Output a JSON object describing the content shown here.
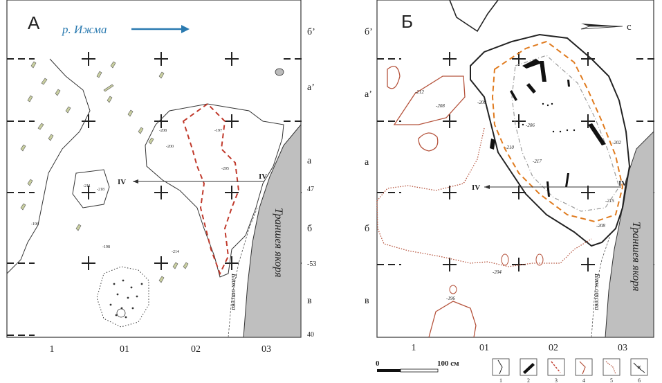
{
  "panel_a": {
    "letter": "А",
    "river_label": "р. Ижма",
    "row_labels": [
      "б’",
      "а’",
      "а",
      "47",
      "б",
      "-53",
      "в",
      "40"
    ],
    "col_labels": [
      "1",
      "01",
      "02",
      "03"
    ],
    "section_label_left": "IV",
    "section_label_right": "IV",
    "trench_label": "Траншея якоря",
    "dump_label": "Блок отсева",
    "depth_labels": [
      "-208",
      "-200",
      "-218",
      "-211",
      "-205",
      "-198",
      "-214",
      "-196",
      "-197"
    ]
  },
  "panel_b": {
    "letter": "Б",
    "north_label": "с",
    "row_labels": [
      "б’",
      "а’",
      "а",
      "б",
      "в"
    ],
    "col_labels": [
      "1",
      "01",
      "02",
      "03"
    ],
    "section_label_left": "IV",
    "section_label_right": "IV",
    "trench_label": "Траншея якоря",
    "dump_label": "Блок отсева",
    "depth_labels": [
      "-212",
      "-208",
      "-200",
      "-206",
      "-202",
      "-210",
      "-217",
      "-215",
      "-208",
      "-204",
      "-196"
    ]
  },
  "scale": {
    "start": "0",
    "end": "100 см"
  },
  "legend": [
    "1",
    "2",
    "3",
    "4",
    "5",
    "6"
  ],
  "colors": {
    "river_arrow": "#2a7ab0",
    "red_dashed": "#c0392b",
    "orange_dashed": "#e07b1f",
    "brown_contour": "#b5533c",
    "trench_fill": "#bfbfbf",
    "stone_fill": "#c9cfa0"
  }
}
